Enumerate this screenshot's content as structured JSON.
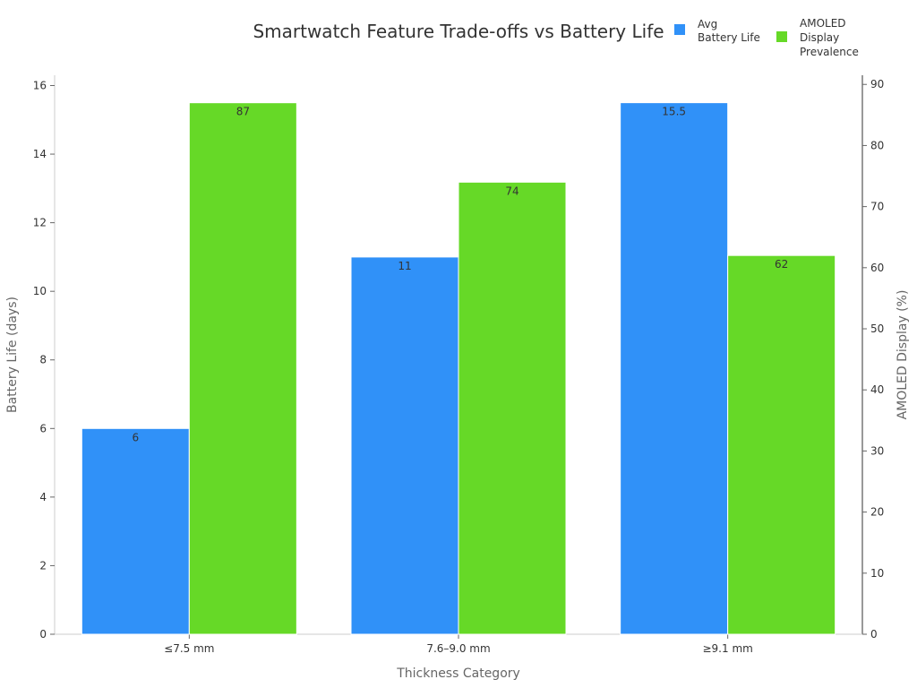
{
  "chart_data": {
    "type": "bar",
    "title": "Smartwatch Feature Trade-offs vs Battery Life",
    "xlabel": "Thickness Category",
    "ylabel_left": "Battery Life (days)",
    "ylabel_right": "AMOLED Display (%)",
    "categories": [
      "≤7.5 mm",
      "7.6–9.0 mm",
      "≥9.1 mm"
    ],
    "y_left_ticks": [
      "0",
      "2",
      "4",
      "6",
      "8",
      "10",
      "12",
      "14",
      "16"
    ],
    "y_right_ticks": [
      "0",
      "10",
      "20",
      "30",
      "40",
      "50",
      "60",
      "70",
      "80",
      "90"
    ],
    "ylim_left": [
      0,
      16.3
    ],
    "ylim_right": [
      0,
      91.5
    ],
    "series": [
      {
        "name": "Avg Battery Life",
        "legend_lines": [
          "Avg",
          "Battery Life"
        ],
        "axis": "left",
        "color": "#3091f8",
        "values": [
          6,
          11,
          15.5
        ],
        "labels": [
          "6",
          "11",
          "15.5"
        ]
      },
      {
        "name": "AMOLED Display Prevalence",
        "legend_lines": [
          "AMOLED",
          "Display",
          "Prevalence"
        ],
        "axis": "right",
        "color": "#66d927",
        "values": [
          87,
          74,
          62
        ],
        "labels": [
          "87",
          "74",
          "62"
        ]
      }
    ],
    "legend_position": "top-right",
    "grid": false
  }
}
